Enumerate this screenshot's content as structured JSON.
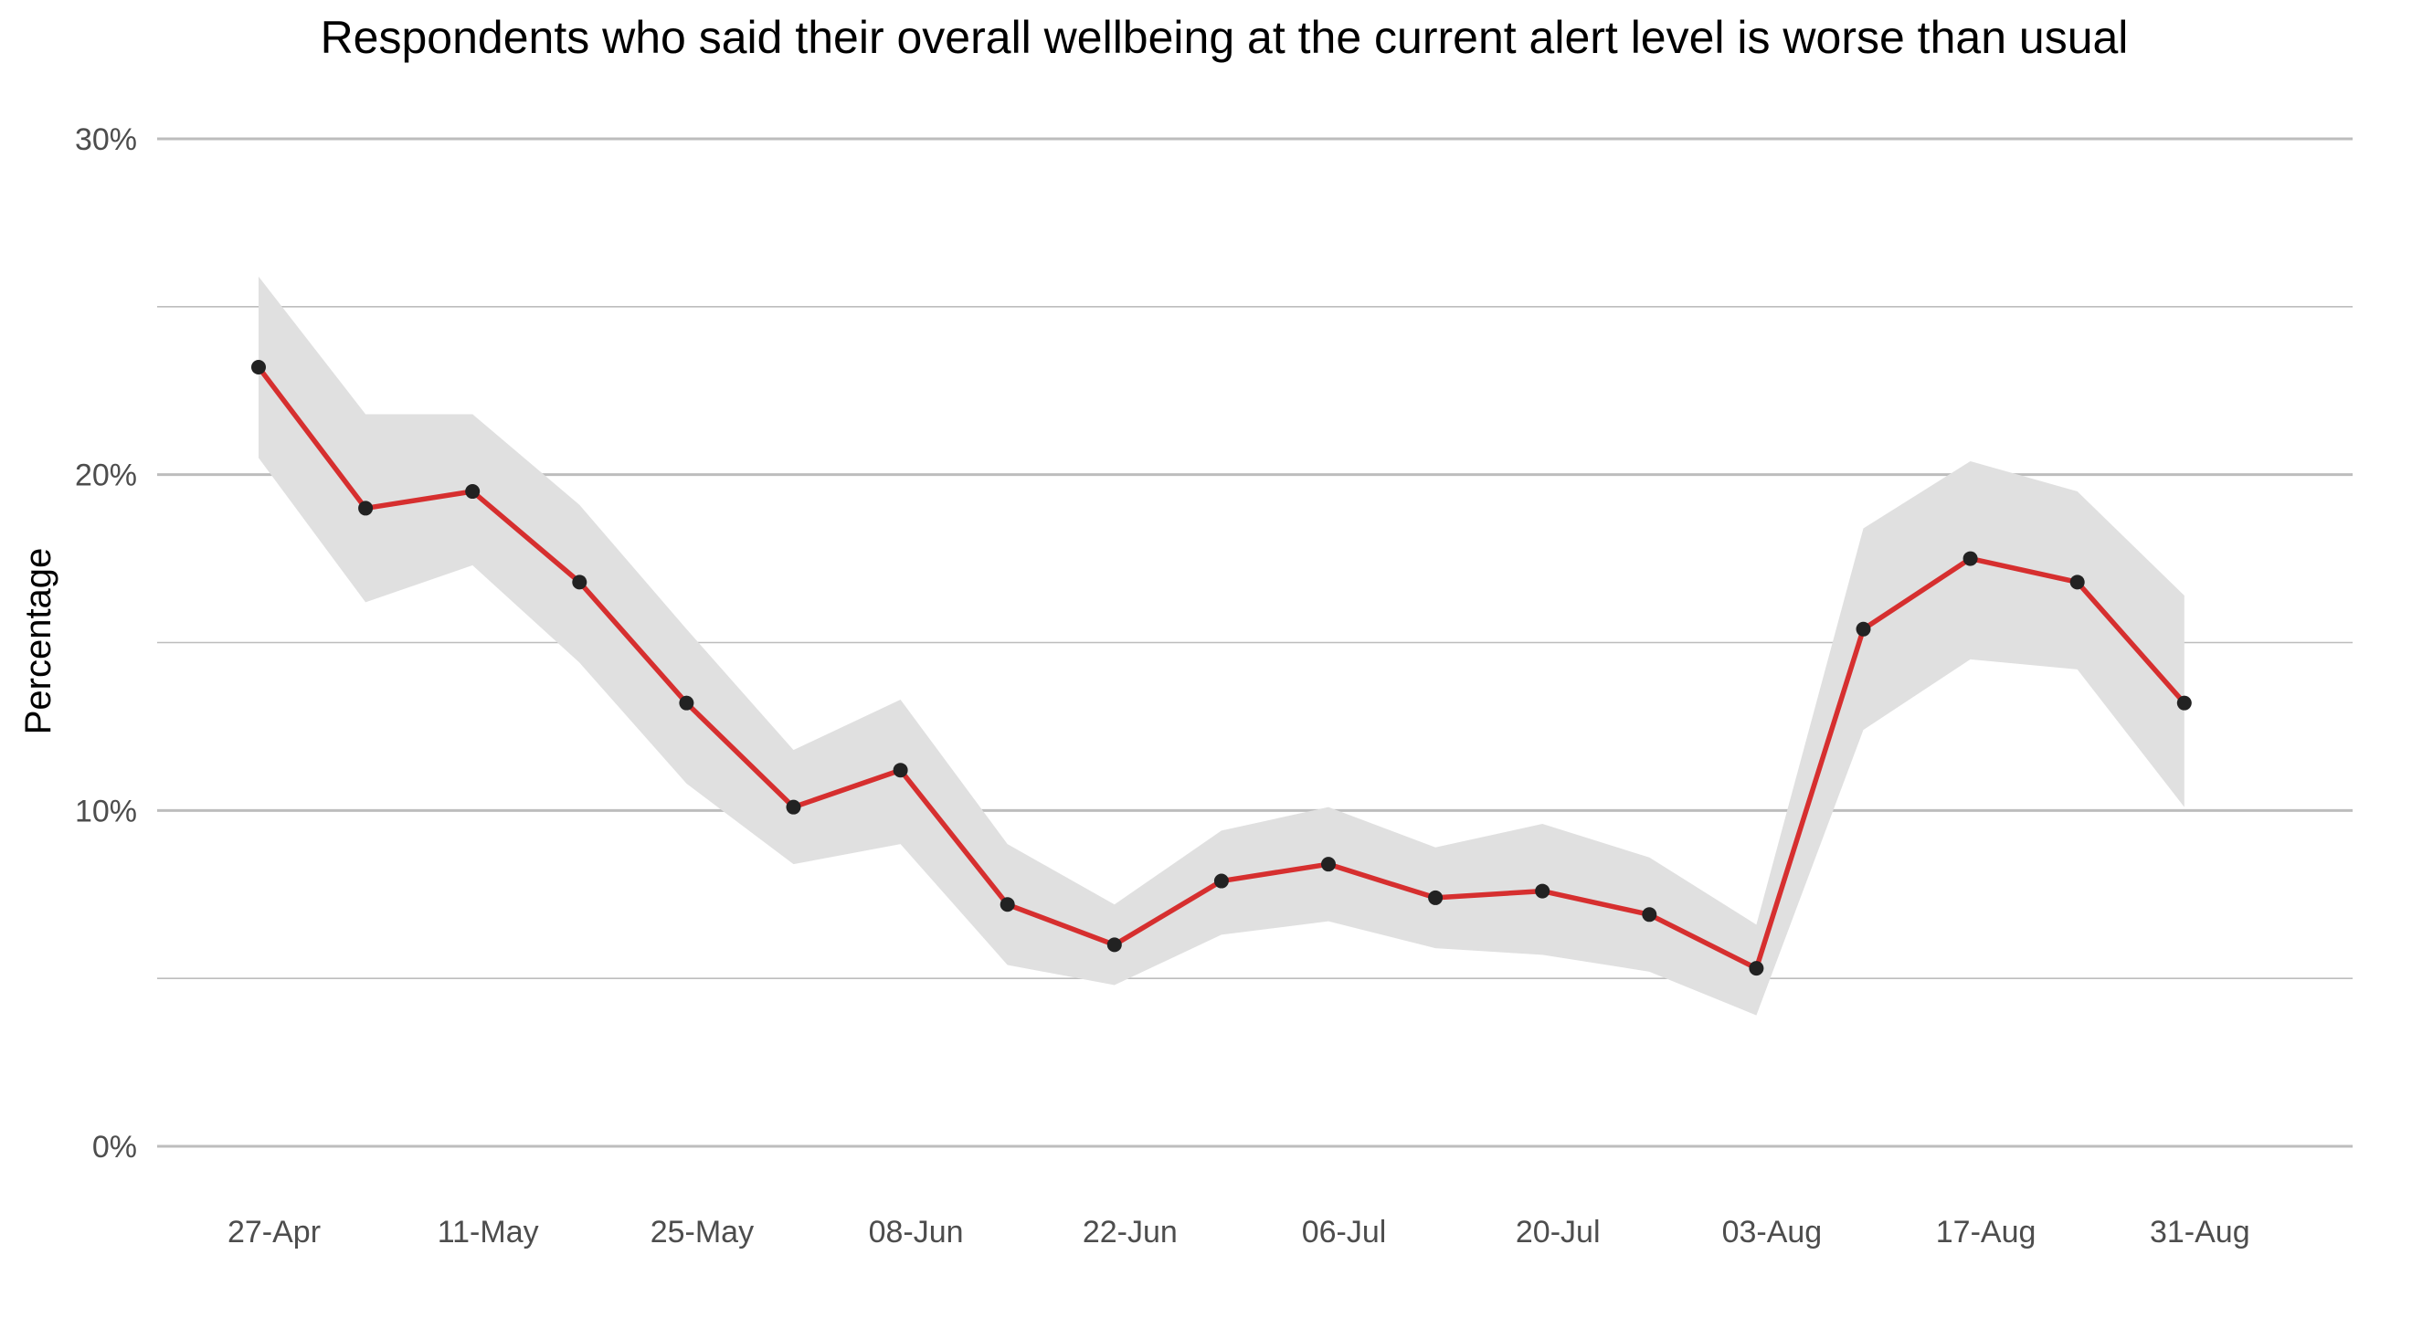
{
  "chart_data": {
    "type": "line",
    "title": "Respondents who said their overall wellbeing at the current alert level is worse than usual",
    "xlabel": "",
    "ylabel": "Percentage",
    "x_tick_labels": [
      "27-Apr",
      "11-May",
      "25-May",
      "08-Jun",
      "22-Jun",
      "06-Jul",
      "20-Jul",
      "03-Aug",
      "17-Aug",
      "31-Aug"
    ],
    "y_tick_labels": [
      "0%",
      "10%",
      "20%",
      "30%"
    ],
    "y_ticks": [
      0,
      10,
      20,
      30
    ],
    "y_minor_gridlines": [
      5,
      15,
      25
    ],
    "ylim": [
      0,
      30
    ],
    "grid": true,
    "line_color": "#d62f2f",
    "point_color": "#222222",
    "band_color": "#e0e0e0",
    "gridline_color": "#bdbdbd",
    "series": [
      {
        "values": [
          23.2,
          19.0,
          19.5,
          16.8,
          13.2,
          10.1,
          11.2,
          7.2,
          6.0,
          7.9,
          8.4,
          7.4,
          7.6,
          6.9,
          5.3,
          15.4,
          17.5,
          16.8,
          13.2
        ],
        "lower": [
          20.5,
          16.2,
          17.3,
          14.4,
          10.8,
          8.4,
          9.0,
          5.4,
          4.8,
          6.3,
          6.7,
          5.9,
          5.7,
          5.2,
          3.9,
          12.4,
          14.5,
          14.2,
          10.1
        ],
        "upper": [
          25.9,
          21.8,
          21.8,
          19.1,
          15.4,
          11.8,
          13.3,
          9.0,
          7.2,
          9.4,
          10.1,
          8.9,
          9.6,
          8.6,
          6.6,
          18.4,
          20.4,
          19.5,
          16.4
        ]
      }
    ]
  }
}
